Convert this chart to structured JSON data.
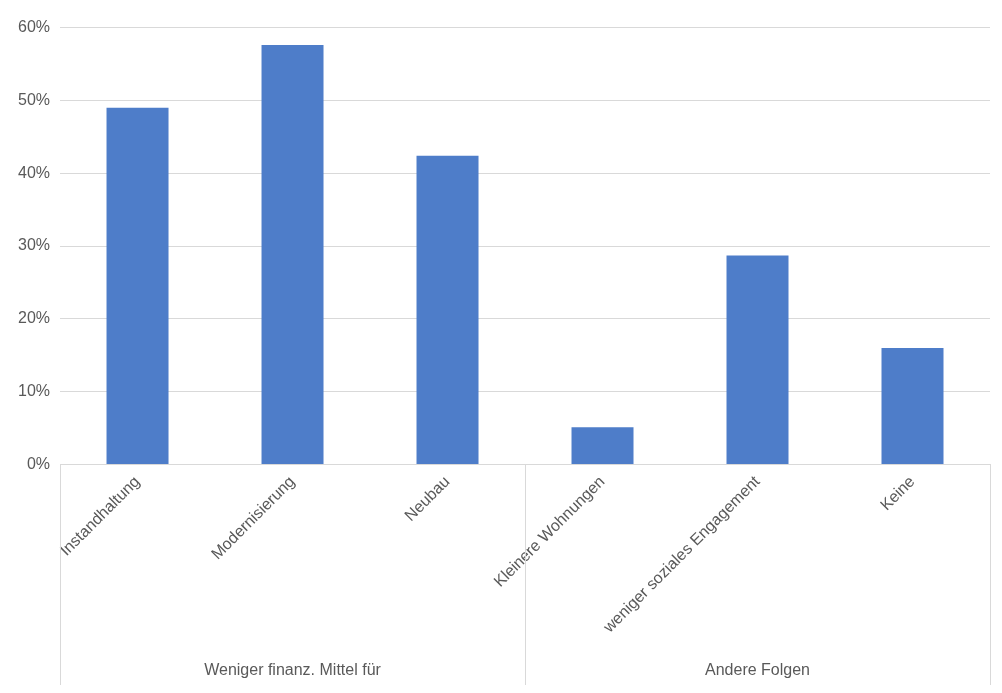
{
  "chart_data": {
    "type": "bar",
    "categories": [
      "Instandhaltung",
      "Modernisierung",
      "Neubau",
      "Kleinere Wohnungen",
      "weniger soziales Engagement",
      "Keine"
    ],
    "values": [
      49,
      57.6,
      42.4,
      5.1,
      28.7,
      16
    ],
    "color": "#4e7dc9",
    "ylim": [
      0,
      60
    ],
    "yticks": [
      {
        "value": 0,
        "label": "0%"
      },
      {
        "value": 10,
        "label": "10%"
      },
      {
        "value": 20,
        "label": "20%"
      },
      {
        "value": 30,
        "label": "30%"
      },
      {
        "value": 40,
        "label": "40%"
      },
      {
        "value": 50,
        "label": "50%"
      },
      {
        "value": 60,
        "label": "60%"
      }
    ],
    "grid": "y",
    "legend": false,
    "annotations": [
      "Weniger finanz. Mittel für",
      "Andere Folgen"
    ]
  }
}
